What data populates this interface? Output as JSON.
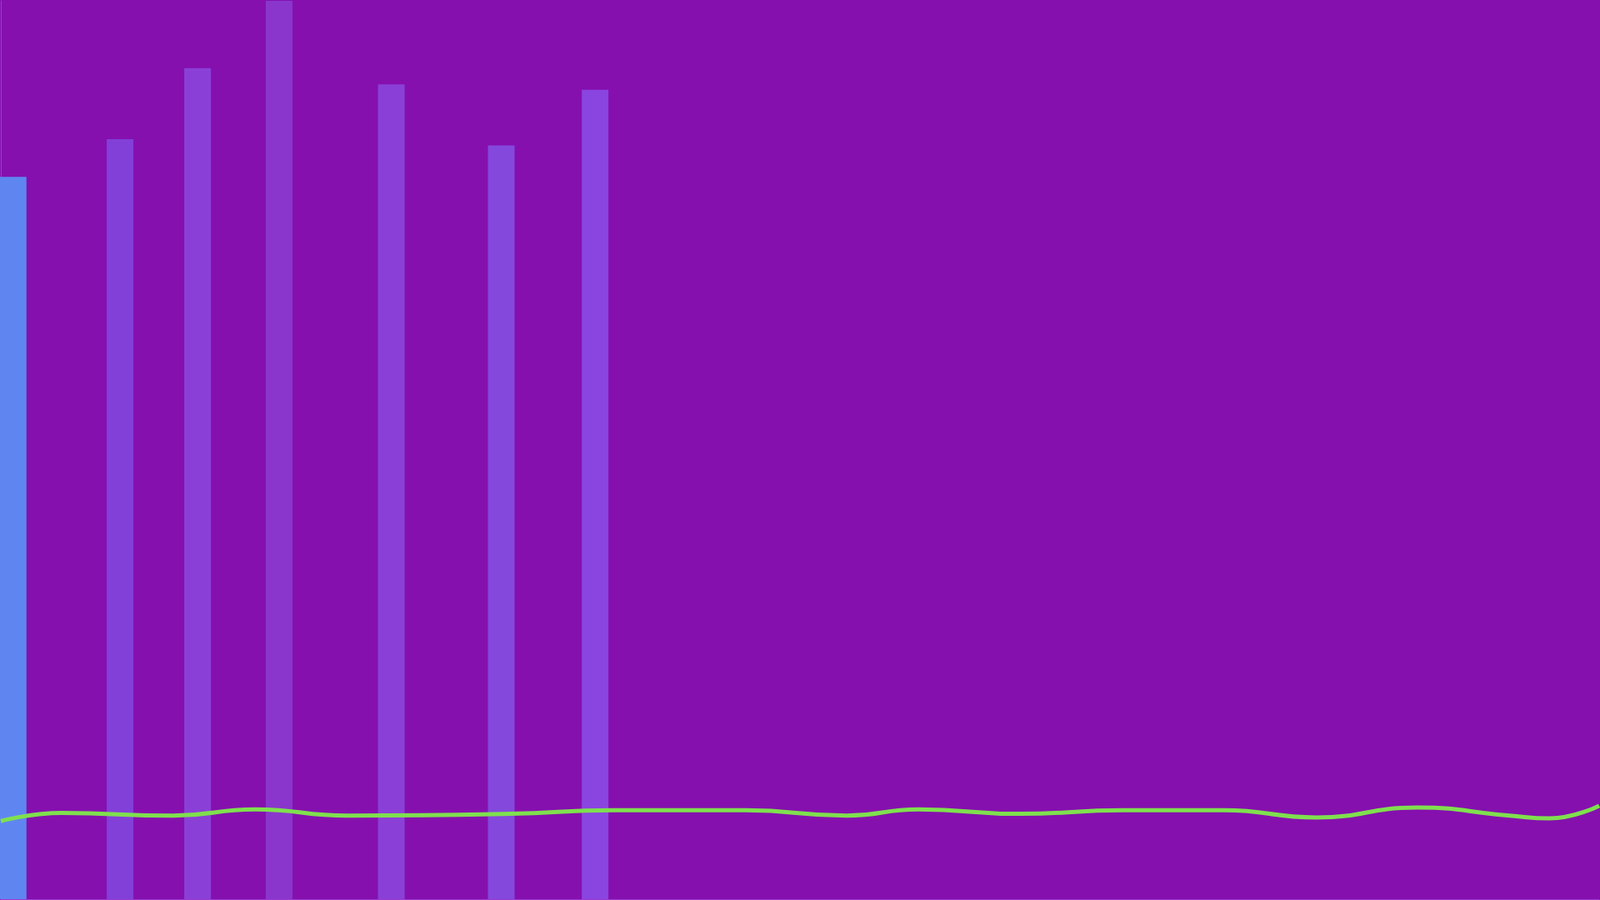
{
  "chart_data": {
    "type": "bar",
    "xlim": [
      0,
      100
    ],
    "ylim": [
      0,
      100
    ],
    "grid": false,
    "tick_labels": false,
    "series": [
      {
        "type": "bar",
        "x": [
          0.77,
          7.46,
          12.31,
          17.41,
          24.43,
          31.31,
          37.18
        ],
        "values": [
          80.4,
          84.6,
          92.5,
          100,
          90.7,
          83.9,
          90.1
        ],
        "colors": [
          "#5f86f0",
          "#8240d8",
          "#8a40d6",
          "#8a36cc",
          "#8a40d6",
          "#8448dc",
          "#8a44e0"
        ]
      },
      {
        "type": "line",
        "color": "#7fe04e",
        "x": [
          0,
          3.8,
          10.8,
          15.9,
          21.7,
          31.9,
          38.3,
          46.6,
          52.9,
          57.4,
          63.8,
          70.2,
          76.5,
          82.3,
          88.6,
          94.4,
          96.9,
          100
        ],
        "values": [
          8.7,
          9.6,
          9.3,
          10.0,
          9.3,
          9.5,
          9.9,
          9.9,
          9.3,
          10.0,
          9.5,
          9.9,
          9.9,
          9.1,
          10.2,
          9.3,
          9.0,
          10.4
        ]
      }
    ]
  }
}
